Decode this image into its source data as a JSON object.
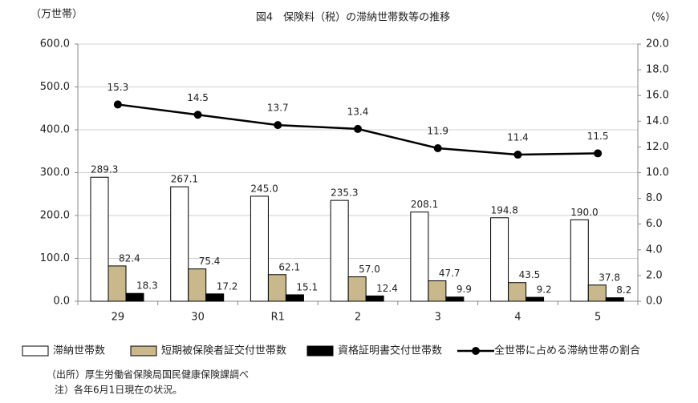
{
  "chart_data": {
    "type": "bar-line",
    "title": "図4　保険料（税）の滞納世帯数等の推移",
    "y_axis_label": "（万世帯）",
    "y2_axis_label": "（%）",
    "categories": [
      "29",
      "30",
      "R1",
      "2",
      "3",
      "4",
      "5"
    ],
    "series": [
      {
        "name": "滞納世帯数",
        "type": "bar",
        "color": "#ffffff",
        "values": [
          289.3,
          267.1,
          245.0,
          235.3,
          208.1,
          194.8,
          190.0
        ],
        "value_labels": [
          "289.3",
          "267.1",
          "245.0",
          "235.3",
          "208.1",
          "194.8",
          "190.0"
        ]
      },
      {
        "name": "短期被保険者証交付世帯数",
        "type": "bar",
        "color": "#c8b88c",
        "values": [
          82.4,
          75.4,
          62.1,
          57.0,
          47.7,
          43.5,
          37.8
        ],
        "value_labels": [
          "82.4",
          "75.4",
          "62.1",
          "57.0",
          "47.7",
          "43.5",
          "37.8"
        ]
      },
      {
        "name": "資格証明書交付世帯数",
        "type": "bar",
        "color": "#000000",
        "values": [
          18.3,
          17.2,
          15.1,
          12.4,
          9.9,
          9.2,
          8.2
        ],
        "value_labels": [
          "18.3",
          "17.2",
          "15.1",
          "12.4",
          "9.9",
          "9.2",
          "8.2"
        ]
      },
      {
        "name": "全世帯に占める滞納世帯の割合",
        "type": "line",
        "axis": "y2",
        "color": "#000000",
        "values": [
          15.3,
          14.5,
          13.7,
          13.4,
          11.9,
          11.4,
          11.5
        ]
      }
    ],
    "ylim": [
      0,
      600
    ],
    "yticks": [
      {
        "value": 0,
        "label": "0.0"
      },
      {
        "value": 100,
        "label": "100.0"
      },
      {
        "value": 200,
        "label": "200.0"
      },
      {
        "value": 300,
        "label": "300.0"
      },
      {
        "value": 400,
        "label": "400.0"
      },
      {
        "value": 500,
        "label": "500.0"
      },
      {
        "value": 600,
        "label": "600.0"
      }
    ],
    "y2lim": [
      0,
      20
    ],
    "y2ticks": [
      {
        "value": 0,
        "label": "0.0"
      },
      {
        "value": 2,
        "label": "2.0"
      },
      {
        "value": 4,
        "label": "4.0"
      },
      {
        "value": 6,
        "label": "6.0"
      },
      {
        "value": 8,
        "label": "8.0"
      },
      {
        "value": 10,
        "label": "10.0"
      },
      {
        "value": 12,
        "label": "12.0"
      },
      {
        "value": 14,
        "label": "14.0"
      },
      {
        "value": 16,
        "label": "16.0"
      },
      {
        "value": 18,
        "label": "18.0"
      },
      {
        "value": 20,
        "label": "20.0"
      }
    ],
    "grid": true,
    "legend": "bottom",
    "notes": [
      "（出所）厚生労働省保険局国民健康保険課調べ",
      "注）各年6月1日現在の状況。"
    ]
  }
}
